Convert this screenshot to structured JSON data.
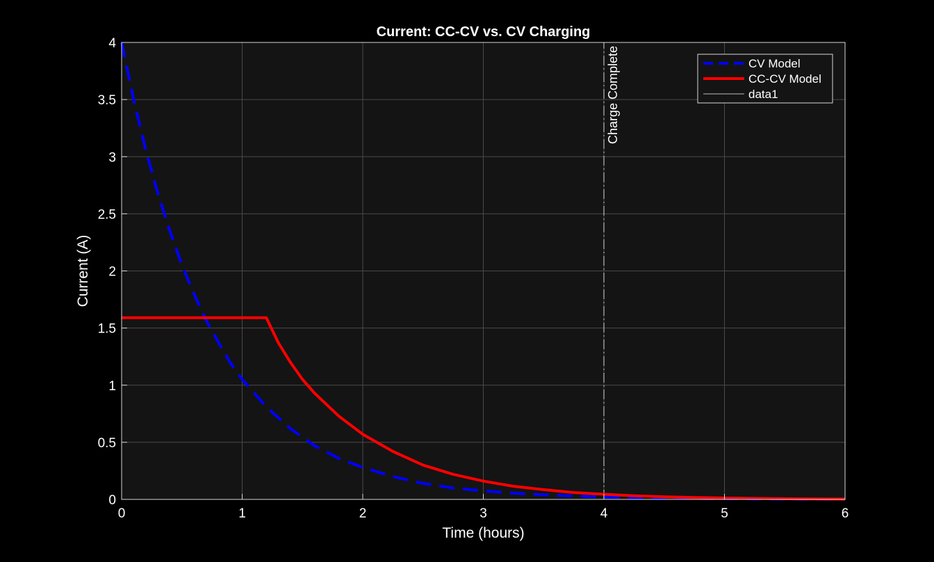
{
  "chart_data": {
    "type": "line",
    "title": "Current: CC-CV vs. CV Charging",
    "xlabel": "Time (hours)",
    "ylabel": "Current (A)",
    "xlim": [
      0,
      6
    ],
    "ylim": [
      0,
      4
    ],
    "xticks": [
      0,
      1,
      2,
      3,
      4,
      5,
      6
    ],
    "xtick_labels": [
      "0",
      "1",
      "2",
      "3",
      "4",
      "5",
      "6"
    ],
    "yticks": [
      0,
      0.5,
      1,
      1.5,
      2,
      2.5,
      3,
      3.5,
      4
    ],
    "ytick_labels": [
      "0",
      "0.5",
      "1",
      "1.5",
      "2",
      "2.5",
      "3",
      "3.5",
      "4"
    ],
    "grid": true,
    "legend_position": "top-right",
    "background": "#141414",
    "series": [
      {
        "name": "CV Model",
        "color": "#0000ff",
        "style": "dashed",
        "x": [
          0,
          0.1,
          0.2,
          0.3,
          0.4,
          0.5,
          0.6,
          0.7,
          0.8,
          0.9,
          1.0,
          1.2,
          1.4,
          1.6,
          1.8,
          2.0,
          2.25,
          2.5,
          2.75,
          3.0,
          3.25,
          3.5,
          3.75,
          4.0,
          4.25,
          4.5,
          4.75,
          5.0,
          5.5,
          6.0
        ],
        "values": [
          4.0,
          3.5,
          3.06,
          2.68,
          2.35,
          2.05,
          1.8,
          1.57,
          1.38,
          1.2,
          1.05,
          0.81,
          0.62,
          0.47,
          0.36,
          0.28,
          0.2,
          0.14,
          0.1,
          0.075,
          0.055,
          0.04,
          0.03,
          0.02,
          0.015,
          0.01,
          0.008,
          0.006,
          0.003,
          0.002
        ]
      },
      {
        "name": "CC-CV Model",
        "color": "#ff0000",
        "style": "solid",
        "x": [
          0,
          1.2,
          1.3,
          1.4,
          1.5,
          1.6,
          1.8,
          2.0,
          2.25,
          2.5,
          2.75,
          3.0,
          3.25,
          3.5,
          3.75,
          4.0,
          4.25,
          4.5,
          4.75,
          5.0,
          5.5,
          6.0
        ],
        "values": [
          1.59,
          1.59,
          1.37,
          1.2,
          1.05,
          0.93,
          0.73,
          0.57,
          0.42,
          0.3,
          0.22,
          0.16,
          0.115,
          0.085,
          0.06,
          0.045,
          0.032,
          0.023,
          0.017,
          0.012,
          0.006,
          0.003
        ]
      },
      {
        "name": "data1",
        "color": "#bbbbbb",
        "style": "dashdot",
        "x": [
          4,
          4
        ],
        "values": [
          0,
          4
        ]
      }
    ],
    "annotations": [
      {
        "text": "Charge Complete",
        "x": 4,
        "y": 4,
        "rotation": -90
      }
    ]
  }
}
